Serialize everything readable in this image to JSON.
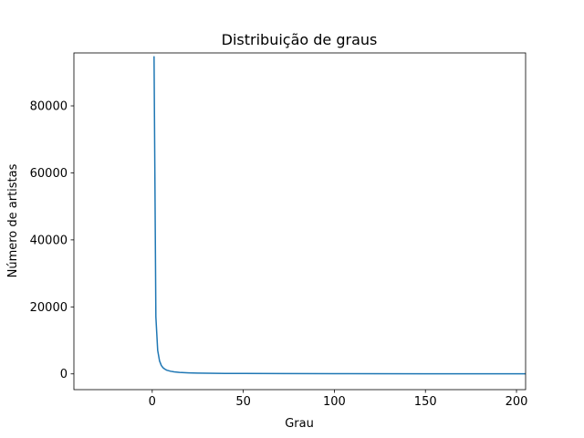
{
  "chart_data": {
    "type": "line",
    "title": "Distribuição de graus",
    "xlabel": "Grau",
    "ylabel": "Número de artistas",
    "xlim": [
      -43,
      205
    ],
    "ylim": [
      -4700,
      95800
    ],
    "grid": false,
    "x_ticks": [
      0,
      50,
      100,
      150,
      200
    ],
    "y_ticks": [
      0,
      20000,
      40000,
      60000,
      80000
    ],
    "series": [
      {
        "color": "#1f77b4",
        "x": [
          1,
          2,
          3,
          4,
          5,
          6,
          7,
          8,
          10,
          12,
          15,
          20,
          25,
          30,
          40,
          50,
          70,
          100,
          150,
          205
        ],
        "y": [
          94800,
          17000,
          7000,
          3900,
          2500,
          1800,
          1400,
          1100,
          800,
          600,
          450,
          320,
          250,
          200,
          150,
          120,
          90,
          60,
          40,
          30
        ]
      }
    ]
  }
}
